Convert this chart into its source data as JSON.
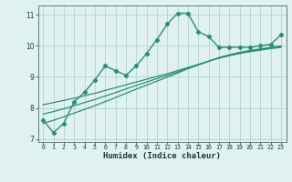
{
  "title": "",
  "xlabel": "Humidex (Indice chaleur)",
  "x": [
    0,
    1,
    2,
    3,
    4,
    5,
    6,
    7,
    8,
    9,
    10,
    11,
    12,
    13,
    14,
    15,
    16,
    17,
    18,
    19,
    20,
    21,
    22,
    23
  ],
  "y_main": [
    7.6,
    7.2,
    7.5,
    8.2,
    8.5,
    8.9,
    9.35,
    9.2,
    9.05,
    9.35,
    9.75,
    10.2,
    10.7,
    11.05,
    11.05,
    10.45,
    10.3,
    9.95,
    9.95,
    9.95,
    9.95,
    10.0,
    10.05,
    10.35
  ],
  "y_line1": [
    8.1,
    8.17,
    8.24,
    8.31,
    8.39,
    8.47,
    8.56,
    8.65,
    8.74,
    8.83,
    8.92,
    9.01,
    9.1,
    9.2,
    9.3,
    9.4,
    9.5,
    9.6,
    9.68,
    9.75,
    9.81,
    9.86,
    9.91,
    9.95
  ],
  "y_line2": [
    7.8,
    7.88,
    7.97,
    8.07,
    8.17,
    8.27,
    8.38,
    8.49,
    8.61,
    8.72,
    8.83,
    8.94,
    9.05,
    9.16,
    9.28,
    9.39,
    9.5,
    9.61,
    9.69,
    9.77,
    9.83,
    9.88,
    9.93,
    9.97
  ],
  "y_line3": [
    7.5,
    7.6,
    7.71,
    7.83,
    7.95,
    8.07,
    8.2,
    8.33,
    8.47,
    8.6,
    8.73,
    8.86,
    8.99,
    9.12,
    9.26,
    9.38,
    9.5,
    9.62,
    9.71,
    9.79,
    9.85,
    9.9,
    9.95,
    10.0
  ],
  "line_color": "#2e8b7a",
  "bg_color": "#dff2f0",
  "grid_color": "#b8d8d5",
  "ylim": [
    6.9,
    11.3
  ],
  "xlim": [
    -0.5,
    23.5
  ],
  "yticks": [
    7,
    8,
    9,
    10,
    11
  ],
  "xticks": [
    0,
    1,
    2,
    3,
    4,
    5,
    6,
    7,
    8,
    9,
    10,
    11,
    12,
    13,
    14,
    15,
    16,
    17,
    18,
    19,
    20,
    21,
    22,
    23
  ]
}
